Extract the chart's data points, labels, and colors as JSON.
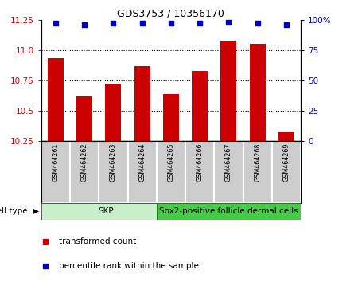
{
  "title": "GDS3753 / 10356170",
  "samples": [
    "GSM464261",
    "GSM464262",
    "GSM464263",
    "GSM464264",
    "GSM464265",
    "GSM464266",
    "GSM464267",
    "GSM464268",
    "GSM464269"
  ],
  "transformed_counts": [
    10.93,
    10.62,
    10.72,
    10.87,
    10.64,
    10.83,
    11.08,
    11.05,
    10.32
  ],
  "percentile_ranks": [
    97,
    96,
    97,
    97,
    97,
    97,
    98,
    97,
    96
  ],
  "ylim_left": [
    10.25,
    11.25
  ],
  "ylim_right": [
    0,
    100
  ],
  "yticks_left": [
    10.25,
    10.5,
    10.75,
    11.0,
    11.25
  ],
  "yticks_right": [
    0,
    25,
    50,
    75,
    100
  ],
  "bar_color": "#cc0000",
  "dot_color": "#0000bb",
  "skp_color": "#c8f0c8",
  "sox2_color": "#44cc44",
  "sample_box_color": "#cccccc",
  "cell_type_groups": [
    {
      "label": "SKP",
      "start": 0,
      "end": 4
    },
    {
      "label": "Sox2-positive follicle dermal cells",
      "start": 4,
      "end": 8
    }
  ],
  "legend_items": [
    {
      "color": "#cc0000",
      "label": "transformed count"
    },
    {
      "color": "#0000bb",
      "label": "percentile rank within the sample"
    }
  ]
}
